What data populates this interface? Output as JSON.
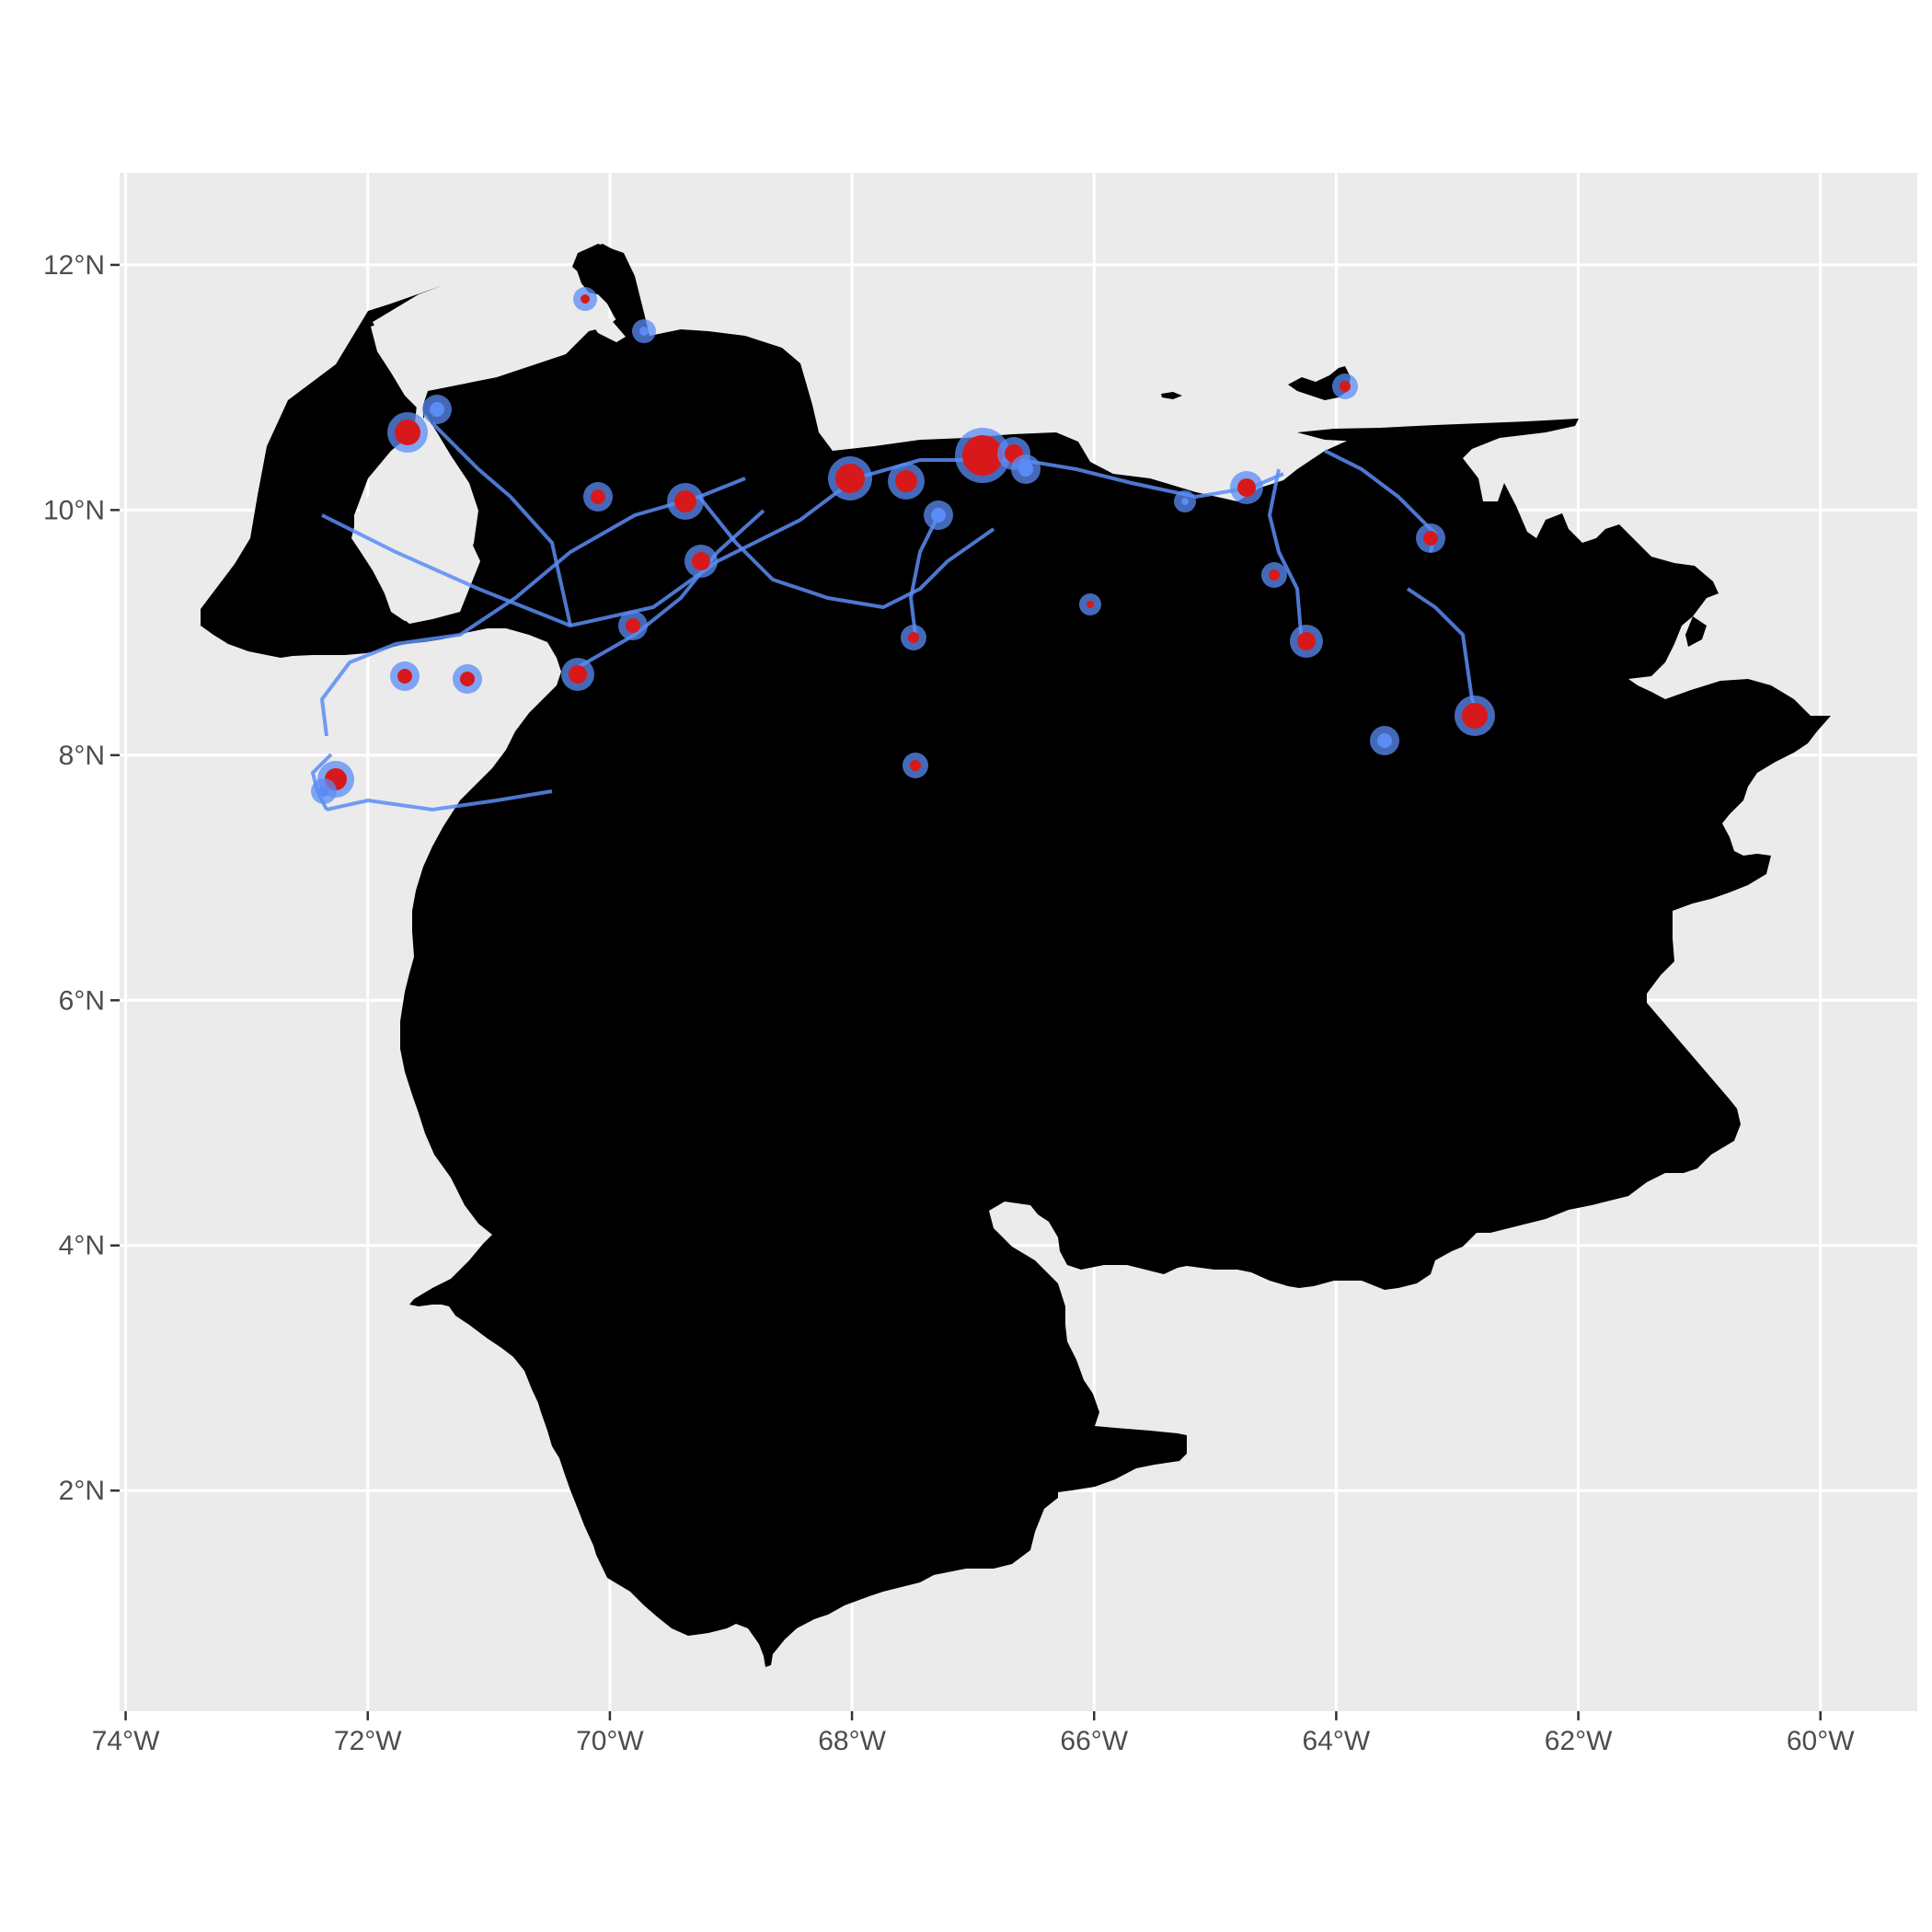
{
  "map": {
    "title": "",
    "colors": {
      "panel_background": "#ebebeb",
      "grid": "#ffffff",
      "land": "#000000",
      "lights_low": "#5b8cf5",
      "lights_high": "#d7191c"
    },
    "x_axis": {
      "unit": "longitude",
      "range": [
        -74.05,
        -59.2
      ],
      "ticks": [
        {
          "value": -74,
          "label": "74°W"
        },
        {
          "value": -72,
          "label": "72°W"
        },
        {
          "value": -70,
          "label": "70°W"
        },
        {
          "value": -68,
          "label": "68°W"
        },
        {
          "value": -66,
          "label": "66°W"
        },
        {
          "value": -64,
          "label": "64°W"
        },
        {
          "value": -62,
          "label": "62°W"
        },
        {
          "value": -60,
          "label": "60°W"
        }
      ]
    },
    "y_axis": {
      "unit": "latitude",
      "range": [
        0.2,
        12.75
      ],
      "ticks": [
        {
          "value": 2,
          "label": "2°N"
        },
        {
          "value": 4,
          "label": "4°N"
        },
        {
          "value": 6,
          "label": "6°N"
        },
        {
          "value": 8,
          "label": "8°N"
        },
        {
          "value": 10,
          "label": "10°N"
        },
        {
          "value": 12,
          "label": "12°N"
        }
      ]
    },
    "grid": true,
    "legend": "none"
  }
}
